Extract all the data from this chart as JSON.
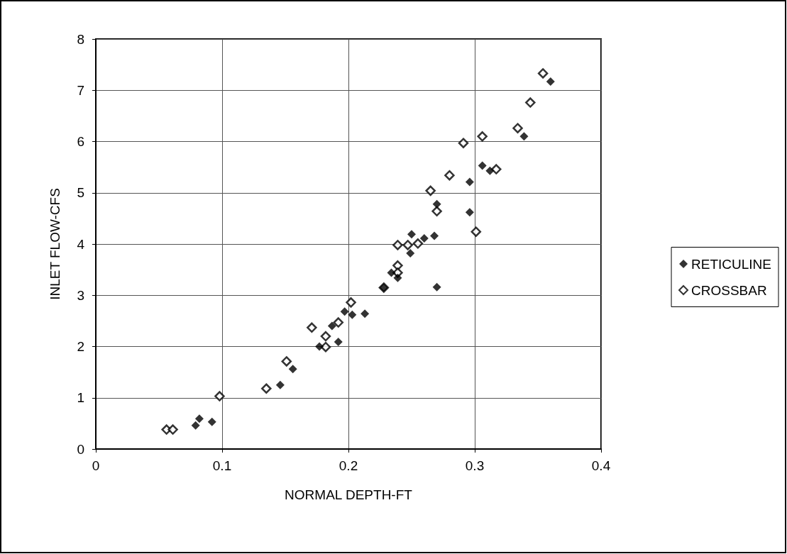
{
  "chart_data": {
    "type": "scatter",
    "xlabel": "NORMAL DEPTH-FT",
    "ylabel": "INLET FLOW-CFS",
    "xlim": [
      0,
      0.4
    ],
    "xticks": [
      0,
      0.1,
      0.2,
      0.3,
      0.4
    ],
    "ylim": [
      0,
      8
    ],
    "yticks": [
      0,
      1,
      2,
      3,
      4,
      5,
      6,
      7,
      8
    ],
    "grid": true,
    "legend": "right",
    "marker": "diamond",
    "series": [
      {
        "name": "RETICULINE",
        "color": "#000000",
        "x": [
          0.079,
          0.082,
          0.092,
          0.146,
          0.156,
          0.177,
          0.187,
          0.192,
          0.197,
          0.203,
          0.213,
          0.234,
          0.239,
          0.228,
          0.249,
          0.26,
          0.268,
          0.25,
          0.27,
          0.27,
          0.296,
          0.296,
          0.306,
          0.312,
          0.339,
          0.36
        ],
        "values": [
          0.46,
          0.59,
          0.53,
          1.25,
          1.56,
          2.0,
          2.4,
          2.09,
          2.68,
          2.62,
          2.64,
          3.44,
          3.34,
          3.15,
          3.82,
          4.11,
          4.16,
          4.19,
          3.16,
          4.78,
          5.21,
          4.62,
          5.53,
          5.43,
          6.1,
          7.17
        ]
      },
      {
        "name": "CROSSBAR",
        "color": "#000000",
        "x": [
          0.056,
          0.061,
          0.098,
          0.135,
          0.151,
          0.171,
          0.182,
          0.182,
          0.192,
          0.202,
          0.228,
          0.239,
          0.239,
          0.239,
          0.247,
          0.255,
          0.301,
          0.27,
          0.265,
          0.28,
          0.291,
          0.306,
          0.317,
          0.334,
          0.344,
          0.354
        ],
        "values": [
          0.38,
          0.38,
          1.03,
          1.18,
          1.71,
          2.37,
          2.2,
          1.99,
          2.47,
          2.86,
          3.15,
          3.58,
          3.44,
          3.98,
          3.98,
          4.01,
          4.24,
          4.64,
          5.04,
          5.34,
          5.97,
          6.1,
          5.46,
          6.26,
          6.76,
          7.33
        ]
      }
    ]
  }
}
